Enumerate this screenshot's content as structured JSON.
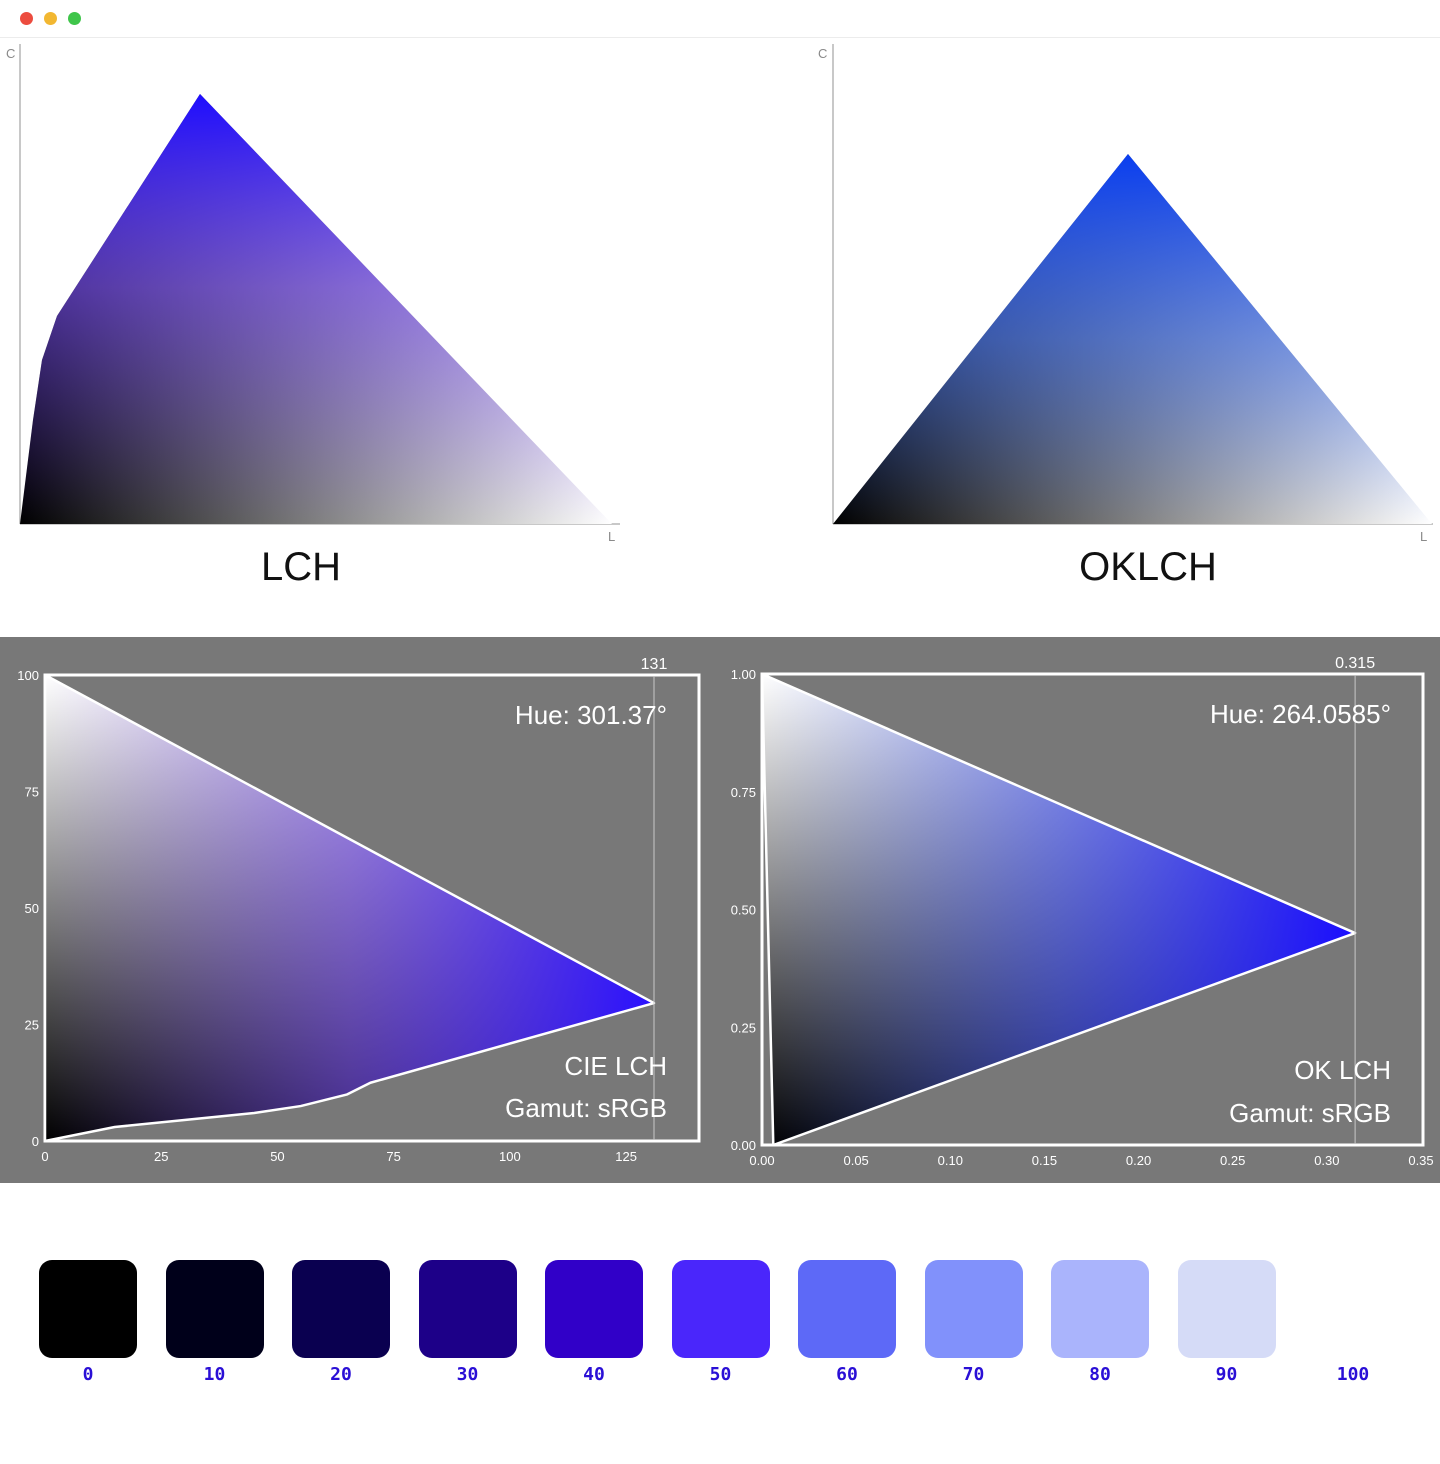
{
  "window": {
    "controls": {
      "close_color": "#ec4c3f",
      "minimize_color": "#f2b731",
      "maximize_color": "#3fc54a"
    }
  },
  "colors": {
    "panel_gray": "#787878",
    "accent": "#2a0fd6",
    "lch_peak": "#1e0dff",
    "oklch_peak": "#0a3ef0"
  },
  "chart_data": [
    {
      "type": "area",
      "title": "LCH",
      "xlabel": "L",
      "ylabel": "C",
      "description_series": "gamut slice chroma vs lightness",
      "series": [
        {
          "name": "LCH sRGB gamut boundary",
          "x": [
            0,
            2,
            6,
            30,
            100
          ],
          "y": [
            0,
            30,
            48,
            100,
            0
          ]
        }
      ]
    },
    {
      "type": "area",
      "title": "OKLCH",
      "xlabel": "L",
      "ylabel": "C",
      "series": [
        {
          "name": "OKLCH sRGB gamut boundary",
          "x": [
            0,
            49,
            100
          ],
          "y": [
            0,
            100,
            0
          ]
        }
      ]
    },
    {
      "type": "area",
      "title": "Hue: 301.37°",
      "label_space": "CIE LCH",
      "label_gamut": "Gamut: sRGB",
      "max_chroma_label": "131",
      "max_chroma": 131,
      "xlim": [
        0,
        131
      ],
      "ylim": [
        0,
        100
      ],
      "x_ticks": [
        "0",
        "25",
        "50",
        "75",
        "100",
        "125"
      ],
      "y_ticks": [
        "0",
        "25",
        "50",
        "75",
        "100"
      ],
      "series": [
        {
          "name": "upper boundary",
          "chroma": [
            0,
            131
          ],
          "lightness": [
            100,
            29.6
          ]
        },
        {
          "name": "lower boundary",
          "chroma": [
            0,
            15,
            30,
            45,
            55,
            65,
            70,
            131
          ],
          "lightness": [
            0,
            3,
            4.5,
            6,
            7.5,
            10,
            12.5,
            29.6
          ]
        }
      ]
    },
    {
      "type": "area",
      "title": "Hue: 264.0585°",
      "label_space": "OK LCH",
      "label_gamut": "Gamut: sRGB",
      "max_chroma_label": "0.315",
      "max_chroma": 0.315,
      "xlim": [
        0,
        0.35
      ],
      "ylim": [
        0,
        1
      ],
      "x_ticks": [
        "0.00",
        "0.05",
        "0.10",
        "0.15",
        "0.20",
        "0.25",
        "0.30",
        "0.35"
      ],
      "y_ticks": [
        "0.00",
        "0.25",
        "0.50",
        "0.75",
        "1.00"
      ],
      "series": [
        {
          "name": "upper boundary",
          "chroma": [
            0,
            0.315
          ],
          "lightness": [
            1.0,
            0.45
          ]
        },
        {
          "name": "lower boundary",
          "chroma": [
            0.006,
            0.315
          ],
          "lightness": [
            0,
            0.45
          ]
        }
      ]
    }
  ],
  "swatches": [
    {
      "label": "0",
      "color": "#000000"
    },
    {
      "label": "10",
      "color": "#00001a"
    },
    {
      "label": "20",
      "color": "#0a0050"
    },
    {
      "label": "30",
      "color": "#1d0088"
    },
    {
      "label": "40",
      "color": "#3100c8"
    },
    {
      "label": "50",
      "color": "#4a26fb"
    },
    {
      "label": "60",
      "color": "#5d69f7"
    },
    {
      "label": "70",
      "color": "#8191fb"
    },
    {
      "label": "80",
      "color": "#aab4fc"
    },
    {
      "label": "90",
      "color": "#d5dbf7"
    },
    {
      "label": "100",
      "color": "#ffffff"
    }
  ]
}
